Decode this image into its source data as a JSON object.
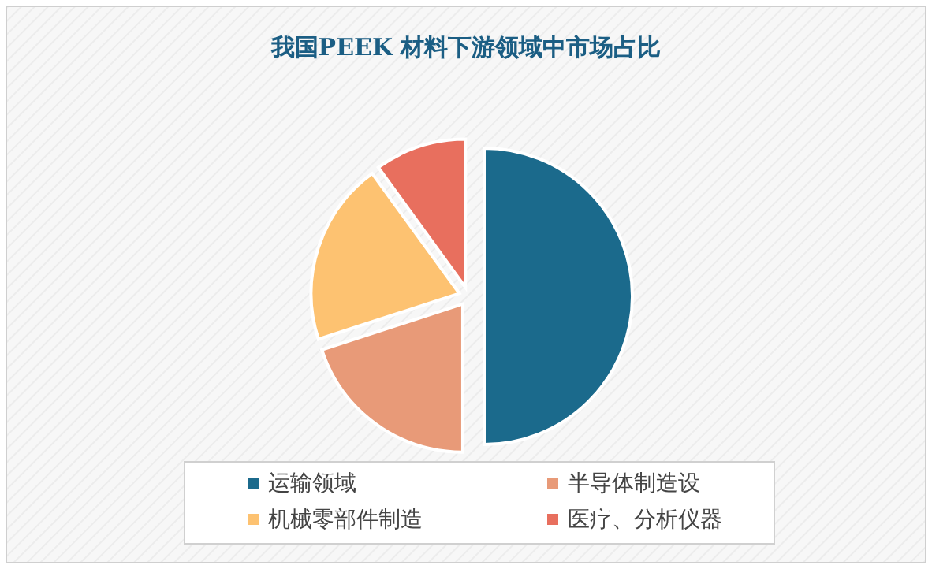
{
  "chart_data": {
    "type": "pie",
    "title": "我国PEEK 材料下游领域中市场占比",
    "categories": [
      "运输领域",
      "半导体制造设",
      "机械零部件制造",
      "医疗、分析仪器"
    ],
    "values": [
      50,
      20,
      20,
      10
    ],
    "colors": [
      "#1b6a8c",
      "#e89a78",
      "#fdc271",
      "#e86f5e"
    ],
    "legend": "bottom"
  }
}
